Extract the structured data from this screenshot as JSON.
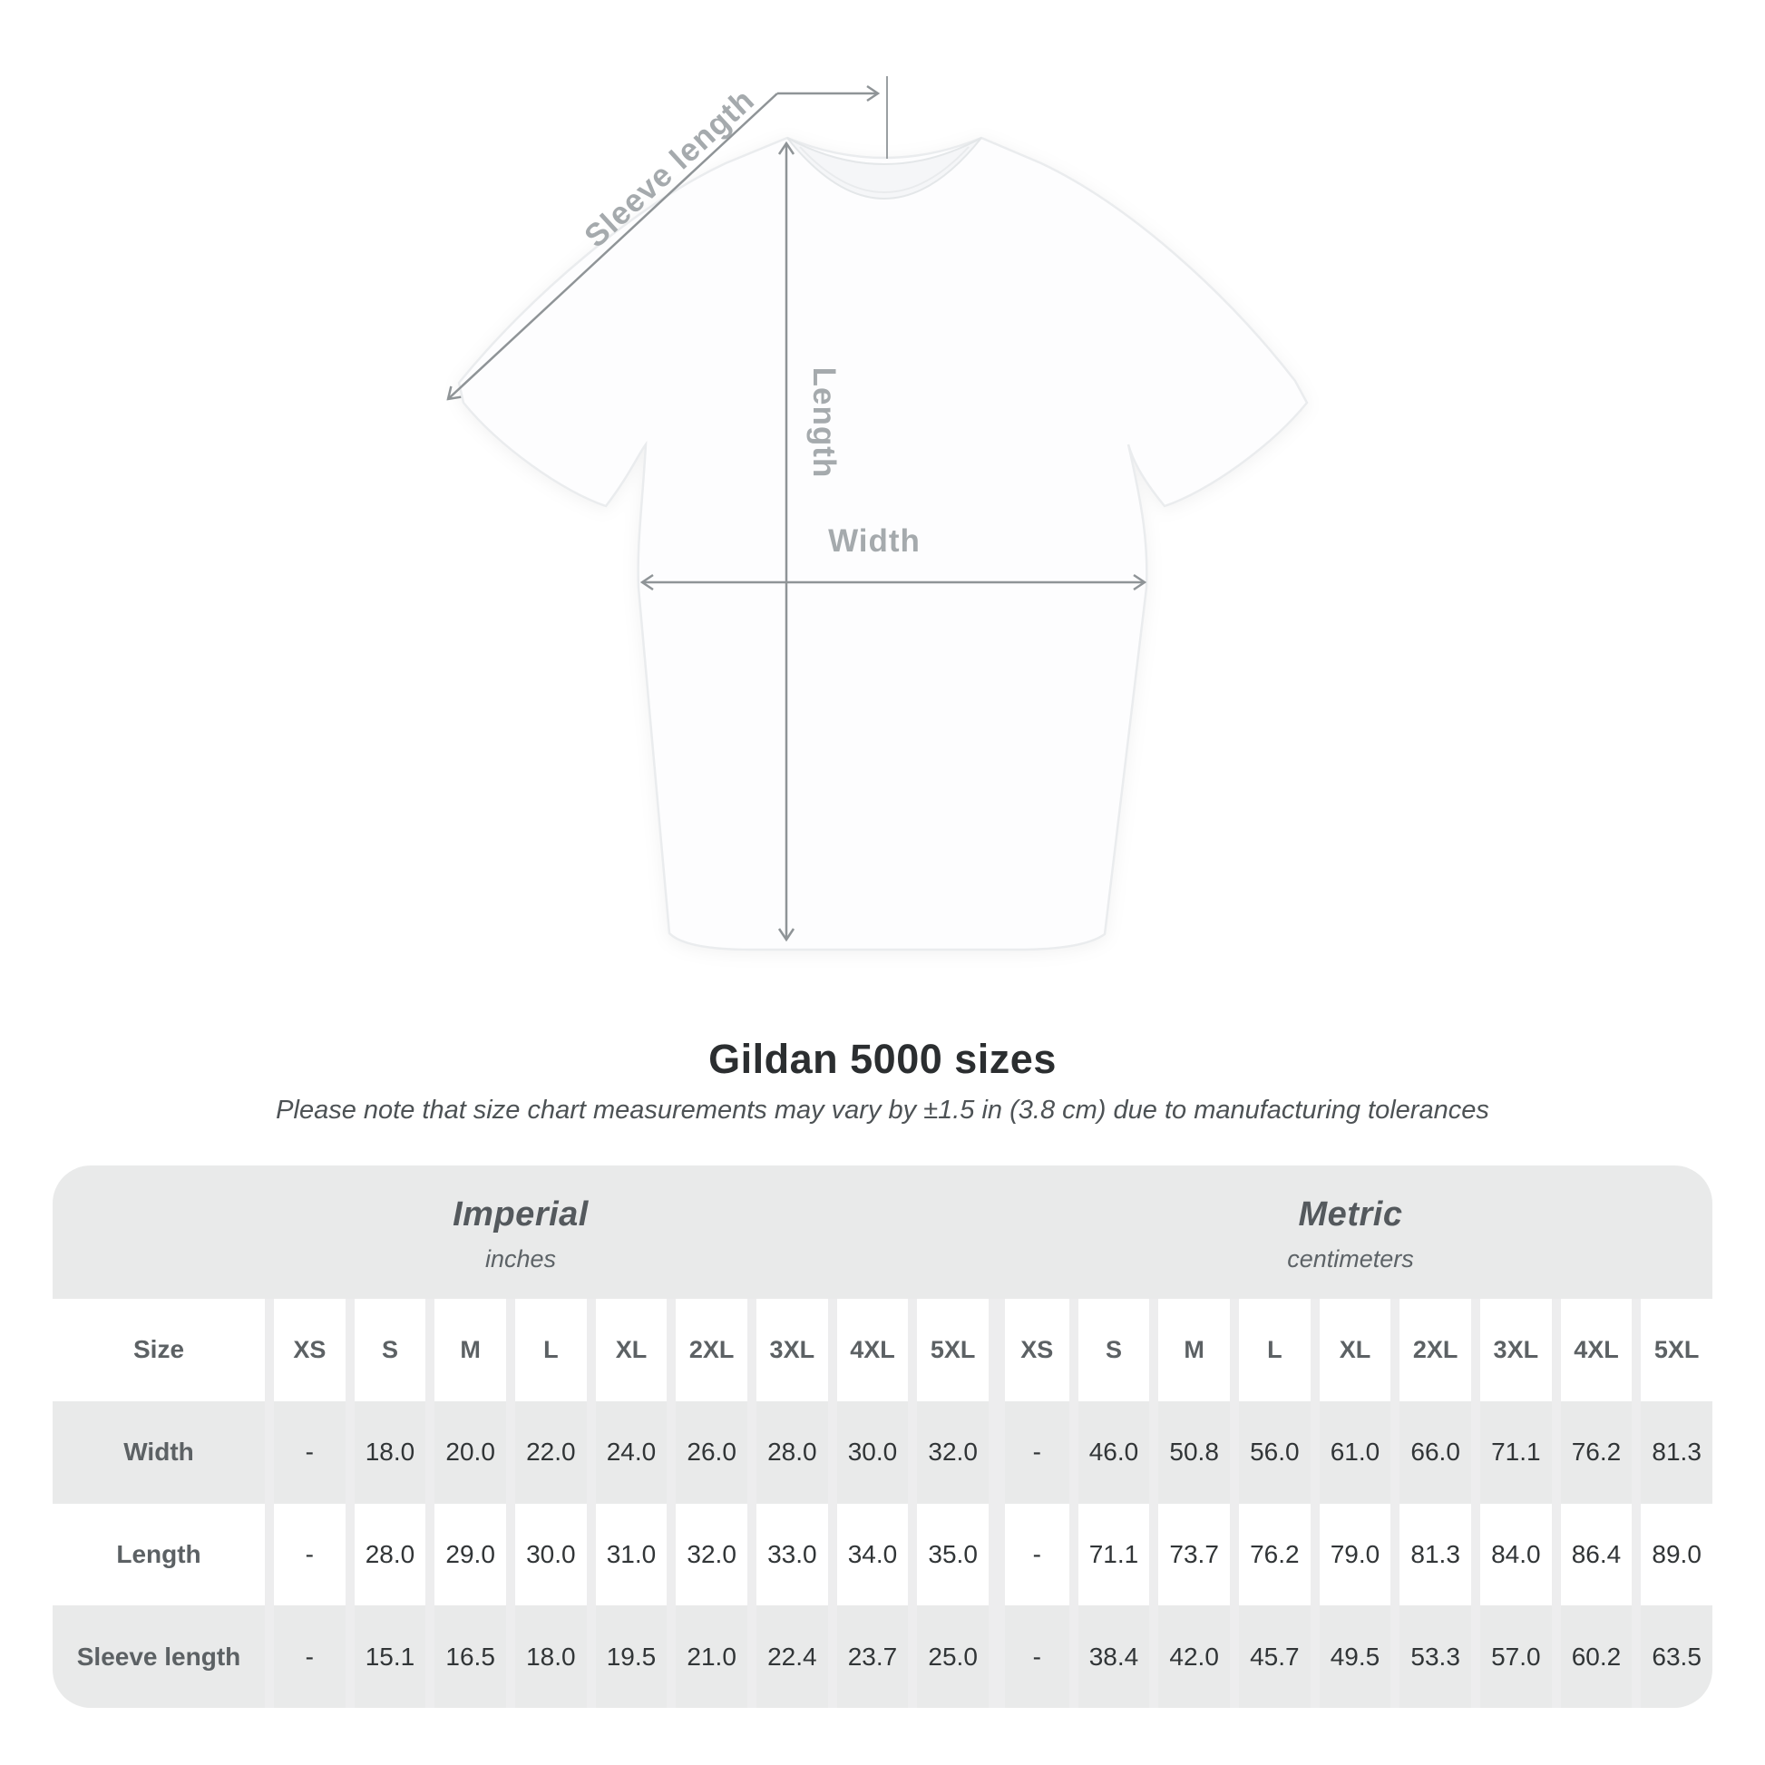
{
  "page": {
    "title": "Gildan 5000 sizes",
    "subtitle": "Please note that size chart measurements may vary by ±1.5 in (3.8 cm) due to manufacturing tolerances"
  },
  "diagram": {
    "sleeve_length_label": "Sleeve length",
    "length_label": "Length",
    "width_label": "Width"
  },
  "table": {
    "size_header": "Size",
    "unit_groups": [
      {
        "name": "Imperial",
        "unit": "inches"
      },
      {
        "name": "Metric",
        "unit": "centimeters"
      }
    ],
    "sizes": [
      "XS",
      "S",
      "M",
      "L",
      "XL",
      "2XL",
      "3XL",
      "4XL",
      "5XL"
    ],
    "rows": [
      {
        "label": "Width",
        "imperial": [
          "-",
          "18.0",
          "20.0",
          "22.0",
          "24.0",
          "26.0",
          "28.0",
          "30.0",
          "32.0"
        ],
        "metric": [
          "-",
          "46.0",
          "50.8",
          "56.0",
          "61.0",
          "66.0",
          "71.1",
          "76.2",
          "81.3"
        ]
      },
      {
        "label": "Length",
        "imperial": [
          "-",
          "28.0",
          "29.0",
          "30.0",
          "31.0",
          "32.0",
          "33.0",
          "34.0",
          "35.0"
        ],
        "metric": [
          "-",
          "71.1",
          "73.7",
          "76.2",
          "79.0",
          "81.3",
          "84.0",
          "86.4",
          "89.0"
        ]
      },
      {
        "label": "Sleeve length",
        "imperial": [
          "-",
          "15.1",
          "16.5",
          "18.0",
          "19.5",
          "21.0",
          "22.4",
          "23.7",
          "25.0"
        ],
        "metric": [
          "-",
          "38.4",
          "42.0",
          "45.7",
          "49.5",
          "53.3",
          "57.0",
          "60.2",
          "63.5"
        ]
      }
    ]
  },
  "colors": {
    "table_background": "#e9eaea",
    "row_alternate": "#ffffff",
    "separator": "#ededee",
    "arrow_gray": "#8f9497",
    "diagram_label_gray": "#a5aaad",
    "heading_text": "#2b2e30",
    "value_text": "#313537",
    "label_text": "#5c6164"
  },
  "chart_data": {
    "type": "table",
    "title": "Gildan 5000 sizes",
    "note": "Please note that size chart measurements may vary by ±1.5 in (3.8 cm) due to manufacturing tolerances",
    "column_groups": [
      "Imperial (inches)",
      "Metric (centimeters)"
    ],
    "columns": [
      "XS",
      "S",
      "M",
      "L",
      "XL",
      "2XL",
      "3XL",
      "4XL",
      "5XL"
    ],
    "rows": [
      {
        "measurement": "Width",
        "imperial_in": [
          null,
          18.0,
          20.0,
          22.0,
          24.0,
          26.0,
          28.0,
          30.0,
          32.0
        ],
        "metric_cm": [
          null,
          46.0,
          50.8,
          56.0,
          61.0,
          66.0,
          71.1,
          76.2,
          81.3
        ]
      },
      {
        "measurement": "Length",
        "imperial_in": [
          null,
          28.0,
          29.0,
          30.0,
          31.0,
          32.0,
          33.0,
          34.0,
          35.0
        ],
        "metric_cm": [
          null,
          71.1,
          73.7,
          76.2,
          79.0,
          81.3,
          84.0,
          86.4,
          89.0
        ]
      },
      {
        "measurement": "Sleeve length",
        "imperial_in": [
          null,
          15.1,
          16.5,
          18.0,
          19.5,
          21.0,
          22.4,
          23.7,
          25.0
        ],
        "metric_cm": [
          null,
          38.4,
          42.0,
          45.7,
          49.5,
          53.3,
          57.0,
          60.2,
          63.5
        ]
      }
    ]
  }
}
